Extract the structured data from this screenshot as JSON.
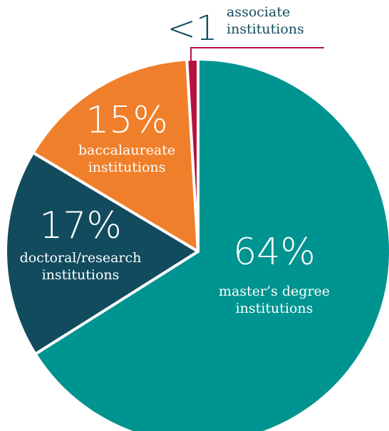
{
  "chart_data": {
    "type": "pie",
    "categories": [
      "master’s degree institutions",
      "doctoral/research institutions",
      "baccalaureate institutions",
      "associate institutions"
    ],
    "values": [
      64,
      17,
      15,
      0.9
    ],
    "value_labels": [
      "64%",
      "17%",
      "15%",
      "<1"
    ],
    "colors": [
      "#009490",
      "#124b5e",
      "#f07f2b",
      "#b5123e"
    ]
  }
}
